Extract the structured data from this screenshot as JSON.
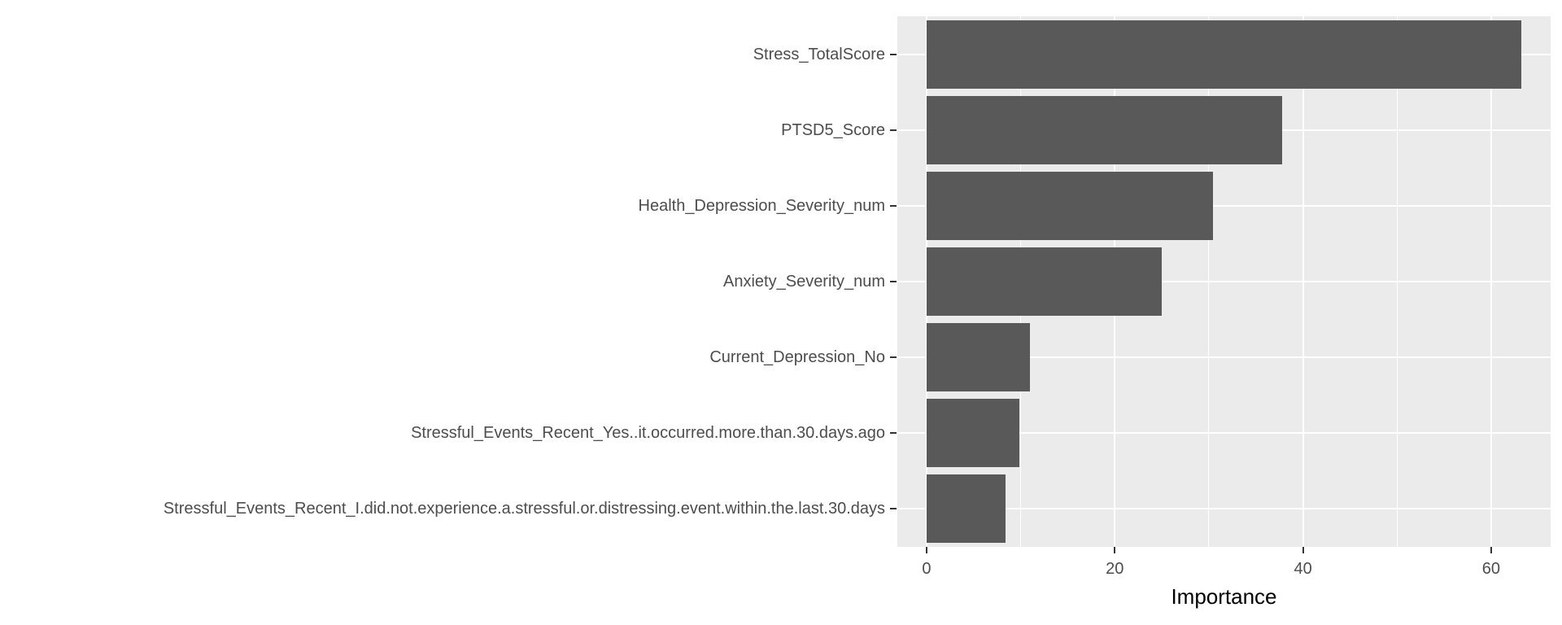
{
  "chart_data": {
    "type": "bar",
    "orientation": "horizontal",
    "title": "",
    "xlabel": "Importance",
    "ylabel": "",
    "categories": [
      "Stress_TotalScore",
      "PTSD5_Score",
      "Health_Depression_Severity_num",
      "Anxiety_Severity_num",
      "Current_Depression_No",
      "Stressful_Events_Recent_Yes..it.occurred.more.than.30.days.ago",
      "Stressful_Events_Recent_I.did.not.experience.a.stressful.or.distressing.event.within.the.last.30.days"
    ],
    "values": [
      63.2,
      37.8,
      30.4,
      25.0,
      11.0,
      9.9,
      8.4
    ],
    "x_ticks": [
      0,
      20,
      40,
      60
    ],
    "x_tick_labels": [
      "0",
      "20",
      "40",
      "60"
    ],
    "x_minor_ticks": [
      10,
      30,
      50
    ],
    "xlim_panel": [
      -3.11,
      66.32
    ],
    "bar_start_value": 0,
    "grid": "white major+minor vertical lines, white horizontal line per category",
    "legend": "none",
    "colors": {
      "bar": "#595959",
      "panel_bg": "#EBEBEB",
      "gridline": "#FFFFFF",
      "axis_text": "#4D4D4D",
      "tick_mark": "#333333",
      "axis_title": "#000000",
      "page_bg": "#FFFFFF"
    }
  }
}
